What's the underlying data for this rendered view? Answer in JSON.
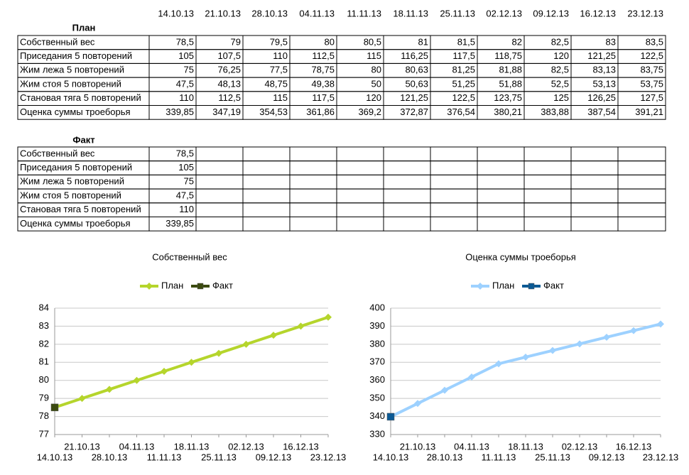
{
  "plan": {
    "title": "План",
    "header": [
      "14.10.13",
      "21.10.13",
      "28.10.13",
      "04.11.13",
      "11.11.13",
      "18.11.13",
      "25.11.13",
      "02.12.13",
      "09.12.13",
      "16.12.13",
      "23.12.13"
    ],
    "rows": [
      {
        "label": "Собственный вес",
        "cells": [
          "78,5",
          "79",
          "79,5",
          "80",
          "80,5",
          "81",
          "81,5",
          "82",
          "82,5",
          "83",
          "83,5"
        ]
      },
      {
        "label": "Приседания 5 повторений",
        "cells": [
          "105",
          "107,5",
          "110",
          "112,5",
          "115",
          "116,25",
          "117,5",
          "118,75",
          "120",
          "121,25",
          "122,5"
        ]
      },
      {
        "label": "Жим лежа 5 повторений",
        "cells": [
          "75",
          "76,25",
          "77,5",
          "78,75",
          "80",
          "80,63",
          "81,25",
          "81,88",
          "82,5",
          "83,13",
          "83,75"
        ]
      },
      {
        "label": "Жим стоя 5 повторений",
        "cells": [
          "47,5",
          "48,13",
          "48,75",
          "49,38",
          "50",
          "50,63",
          "51,25",
          "51,88",
          "52,5",
          "53,13",
          "53,75"
        ]
      },
      {
        "label": "Становая тяга 5 повторений",
        "cells": [
          "110",
          "112,5",
          "115",
          "117,5",
          "120",
          "121,25",
          "122,5",
          "123,75",
          "125",
          "126,25",
          "127,5"
        ]
      },
      {
        "label": "Оценка суммы троеборья",
        "cells": [
          "339,85",
          "347,19",
          "354,53",
          "361,86",
          "369,2",
          "372,87",
          "376,54",
          "380,21",
          "383,88",
          "387,54",
          "391,21"
        ]
      }
    ]
  },
  "fact": {
    "title": "Факт",
    "rows": [
      {
        "label": "Собственный вес",
        "cells": [
          "78,5"
        ]
      },
      {
        "label": "Приседания 5 повторений",
        "cells": [
          "105"
        ]
      },
      {
        "label": "Жим лежа 5 повторений",
        "cells": [
          "75"
        ]
      },
      {
        "label": "Жим стоя 5 повторений",
        "cells": [
          "47,5"
        ]
      },
      {
        "label": "Становая тяга 5 повторений",
        "cells": [
          "110"
        ]
      },
      {
        "label": "Оценка суммы троеборья",
        "cells": [
          "339,85"
        ]
      }
    ]
  },
  "chart_data": [
    {
      "type": "line",
      "title": "Собственный вес",
      "categories": [
        "14.10.13",
        "21.10.13",
        "28.10.13",
        "04.11.13",
        "11.11.13",
        "18.11.13",
        "25.11.13",
        "02.12.13",
        "09.12.13",
        "16.12.13",
        "23.12.13"
      ],
      "series": [
        {
          "name": "План",
          "color": "#b5d52c",
          "marker": "diamond",
          "values": [
            78.5,
            79,
            79.5,
            80,
            80.5,
            81,
            81.5,
            82,
            82.5,
            83,
            83.5
          ]
        },
        {
          "name": "Факт",
          "color": "#3b4a0f",
          "marker": "square",
          "values": [
            78.5,
            null,
            null,
            null,
            null,
            null,
            null,
            null,
            null,
            null,
            null
          ]
        }
      ],
      "ylim": [
        77,
        84
      ],
      "yticks": [
        77,
        78,
        79,
        80,
        81,
        82,
        83,
        84
      ],
      "grid": true,
      "legend": "top"
    },
    {
      "type": "line",
      "title": "Оценка суммы троеборья",
      "categories": [
        "14.10.13",
        "21.10.13",
        "28.10.13",
        "04.11.13",
        "11.11.13",
        "18.11.13",
        "25.11.13",
        "02.12.13",
        "09.12.13",
        "16.12.13",
        "23.12.13"
      ],
      "series": [
        {
          "name": "План",
          "color": "#9dd1ff",
          "marker": "diamond",
          "values": [
            339.85,
            347.19,
            354.53,
            361.86,
            369.2,
            372.87,
            376.54,
            380.21,
            383.88,
            387.54,
            391.21
          ]
        },
        {
          "name": "Факт",
          "color": "#0b5a95",
          "marker": "square",
          "values": [
            339.85,
            null,
            null,
            null,
            null,
            null,
            null,
            null,
            null,
            null,
            null
          ]
        }
      ],
      "ylim": [
        330,
        400
      ],
      "yticks": [
        330,
        340,
        350,
        360,
        370,
        380,
        390,
        400
      ],
      "grid": true,
      "legend": "top"
    }
  ]
}
